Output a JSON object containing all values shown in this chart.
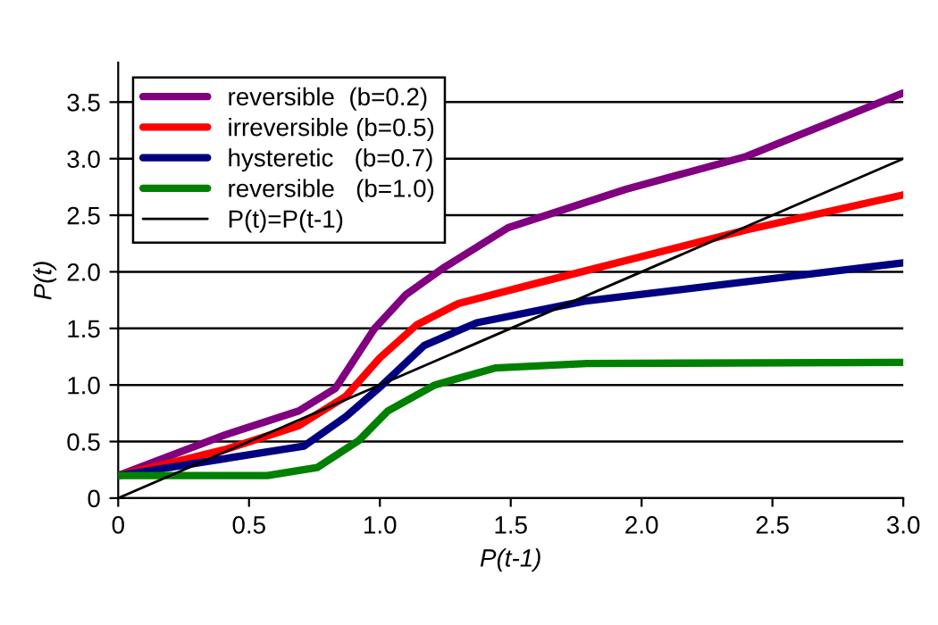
{
  "chart_data": {
    "type": "line",
    "xlabel": "P(t-1)",
    "ylabel": "P(t)",
    "xlim": [
      0,
      3.0
    ],
    "xticks": [
      0,
      0.5,
      {
        "value": 1,
        "label": "1.0"
      },
      1.5,
      {
        "value": 2,
        "label": "2.0"
      },
      2.5,
      {
        "value": 3,
        "label": "3.0"
      }
    ],
    "ylim": [
      0,
      3.85
    ],
    "yticks": [
      0,
      0.5,
      {
        "value": 1,
        "label": "1.0"
      },
      1.5,
      {
        "value": 2,
        "label": "2.0"
      },
      2.5,
      {
        "value": 3,
        "label": "3.0"
      },
      3.5
    ],
    "grid": "y",
    "legend": "top left",
    "marker": "none",
    "line_style": "solid",
    "series": [
      {
        "name": "reversible  (b=0.2)",
        "color": "#800080",
        "x": [
          0,
          0.41,
          0.69,
          0.83,
          0.98,
          1.1,
          1.24,
          1.49,
          1.94,
          2.4,
          3.0
        ],
        "values": [
          0.2,
          0.56,
          0.77,
          0.97,
          1.5,
          1.8,
          2.03,
          2.39,
          2.73,
          3.02,
          3.58
        ]
      },
      {
        "name": "irreversible (b=0.5)",
        "color": "#ff0000",
        "x": [
          0,
          0.41,
          0.69,
          0.87,
          1.0,
          1.14,
          1.3,
          1.6,
          2.4,
          3.0
        ],
        "values": [
          0.2,
          0.43,
          0.64,
          0.9,
          1.24,
          1.53,
          1.72,
          1.9,
          2.37,
          2.68
        ]
      },
      {
        "name": "hysteretic   (b=0.7)",
        "color": "#000080",
        "x": [
          0,
          0.41,
          0.71,
          0.87,
          1.0,
          1.17,
          1.37,
          1.78,
          3.0
        ],
        "values": [
          0.2,
          0.35,
          0.46,
          0.72,
          0.98,
          1.35,
          1.55,
          1.74,
          2.08
        ]
      },
      {
        "name": "reversible   (b=1.0)",
        "color": "#008000",
        "x": [
          0,
          0.57,
          0.76,
          0.92,
          1.03,
          1.21,
          1.44,
          1.79,
          3.0
        ],
        "values": [
          0.2,
          0.2,
          0.27,
          0.51,
          0.77,
          1.0,
          1.15,
          1.19,
          1.2
        ]
      },
      {
        "name": "P(t)=P(t-1)",
        "color": "#000000",
        "x": [
          0,
          3.0
        ],
        "values": [
          0,
          3.0
        ]
      }
    ]
  }
}
